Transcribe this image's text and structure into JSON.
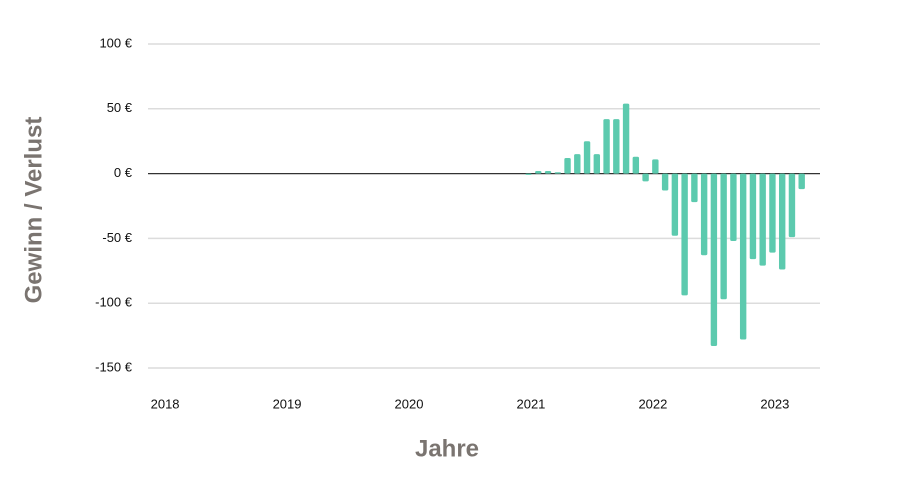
{
  "chart_data": {
    "type": "bar",
    "ylabel": "Gewinn / Verlust",
    "xlabel": "Jahre",
    "color": "#5ccaae",
    "grid": true,
    "x": [
      2020.98,
      2021.06,
      2021.14,
      2021.22,
      2021.3,
      2021.38,
      2021.46,
      2021.54,
      2021.62,
      2021.7,
      2021.78,
      2021.86,
      2021.94,
      2022.02,
      2022.1,
      2022.18,
      2022.26,
      2022.34,
      2022.42,
      2022.5,
      2022.58,
      2022.66,
      2022.74,
      2022.82,
      2022.9,
      2022.98,
      2023.06,
      2023.14,
      2023.22
    ],
    "values": [
      -1,
      2,
      2,
      1,
      12,
      15,
      25,
      15,
      42,
      42,
      54,
      13,
      -6,
      11,
      -13,
      -48,
      -94,
      -22,
      -63,
      -133,
      -97,
      -52,
      -128,
      -66,
      -71,
      -61,
      -74,
      -49,
      -12
    ],
    "xlim": [
      2017.86,
      2023.37
    ],
    "xticks": [
      2018,
      2019,
      2020,
      2021,
      2022,
      2023
    ],
    "ylim": [
      -150,
      100
    ],
    "yticks": [
      {
        "value": 100,
        "label": "100 €"
      },
      {
        "value": 50,
        "label": "50 €"
      },
      {
        "value": 0,
        "label": "0 €"
      },
      {
        "value": -50,
        "label": "-50 €"
      },
      {
        "value": -100,
        "label": "-100 €"
      },
      {
        "value": -150,
        "label": "-150 €"
      }
    ]
  }
}
